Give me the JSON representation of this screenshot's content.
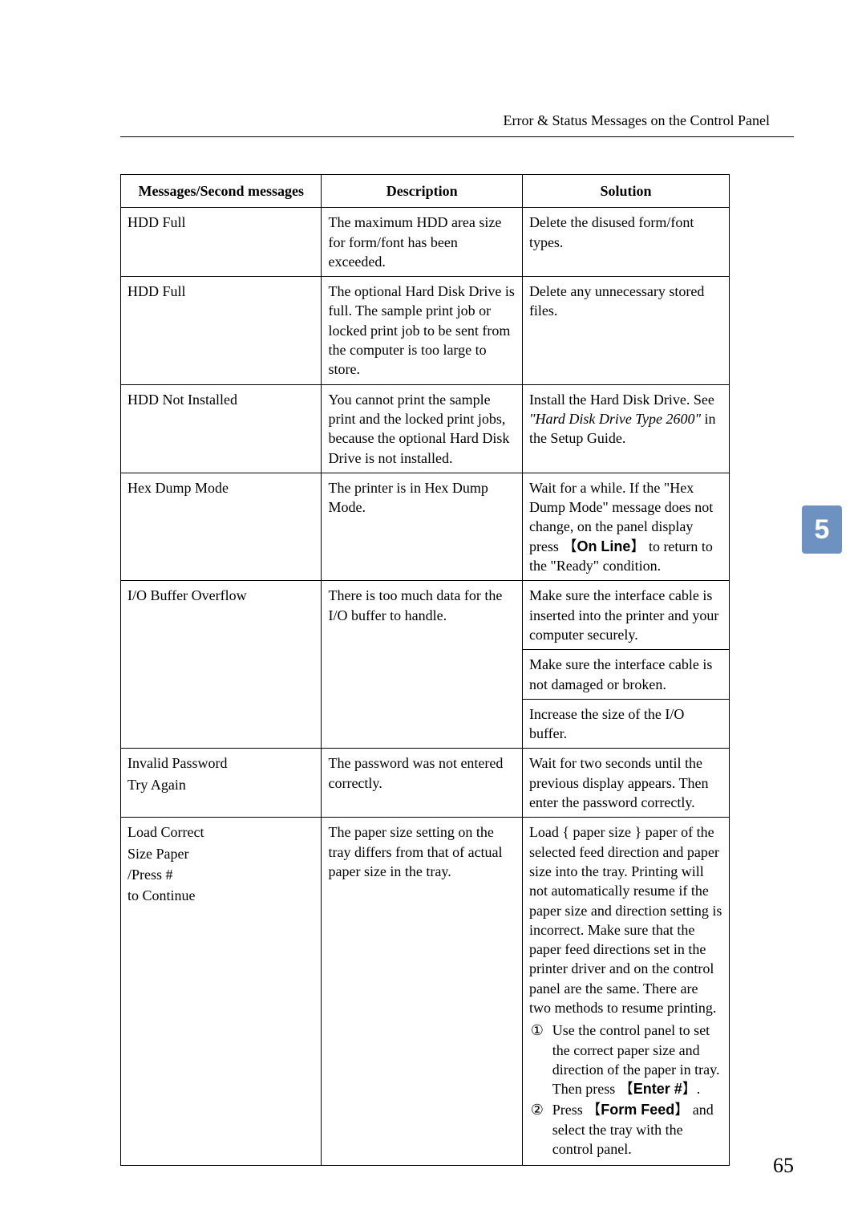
{
  "header_caption": "Error & Status Messages on the Control Panel",
  "side_tab_label": "5",
  "page_number": "65",
  "table": {
    "columns": [
      "Messages/Second messages",
      "Description",
      "Solution"
    ],
    "rows": [
      {
        "msg": [
          "HDD Full"
        ],
        "desc": "The maximum HDD area size for form/font has been exceeded.",
        "sol_plain": "Delete the disused form/font types."
      },
      {
        "msg": [
          "HDD Full"
        ],
        "desc": "The optional Hard Disk Drive is full. The sample print job or locked print job to be sent from the computer is too large to store.",
        "sol_plain": "Delete any unnecessary stored files."
      },
      {
        "msg": [
          "HDD Not Installed"
        ],
        "desc": "You cannot print the sample print and the locked print jobs, because the optional Hard Disk Drive is not installed.",
        "sol_hdd": {
          "p1": "Install the Hard Disk Drive. See ",
          "italic": "\"Hard Disk Drive Type 2600\"",
          "p2": " in the Setup Guide."
        }
      },
      {
        "msg": [
          "Hex Dump Mode"
        ],
        "desc": "The printer is in Hex Dump Mode.",
        "sol_hex": {
          "p1": "Wait for a while. If the \"Hex Dump Mode\" message does not change, on the panel display press ",
          "key": "On Line",
          "p2": " to return to the \"Ready\" condition."
        }
      },
      {
        "msg": [
          "I/O Buffer Overflow"
        ],
        "desc": "There is too much data for the I/O buffer to handle.",
        "sol_multi": [
          "Make sure the interface cable is inserted into the printer and your computer securely.",
          "Make sure the interface cable is not damaged or broken.",
          "Increase the size of the I/O buffer."
        ]
      },
      {
        "msg": [
          "Invalid Password",
          "Try Again"
        ],
        "desc": "The password was not entered correctly.",
        "sol_plain": "Wait for two seconds until the previous display appears. Then enter the password correctly."
      },
      {
        "msg": [
          "Load Correct",
          "Size Paper",
          "/Press #",
          "to Continue"
        ],
        "desc": "The paper size setting on the tray differs from that of actual paper size in the tray.",
        "sol_load": {
          "intro": "Load { paper size } paper of the selected feed direction and paper size into the tray. Printing will not automatically resume if the paper size and direction setting is incorrect. Make sure that the paper feed directions set in the printer driver and on the control panel are the same. There are two methods to resume printing.",
          "items": [
            {
              "num": "①",
              "p1": "Use the control panel to set the correct paper size and direction of the paper in tray. Then press ",
              "key": "Enter #",
              "p2": "."
            },
            {
              "num": "②",
              "p1": "Press ",
              "key": "Form Feed",
              "p2": " and select the tray with the control panel."
            }
          ]
        }
      }
    ]
  }
}
